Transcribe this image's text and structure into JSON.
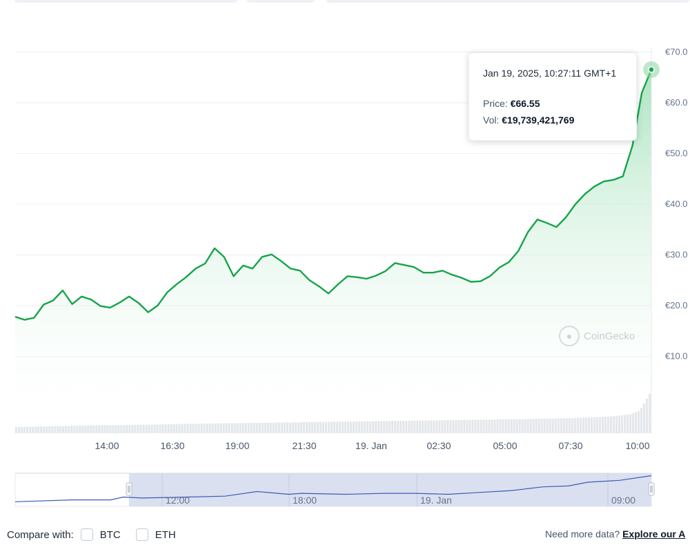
{
  "chart_data": {
    "type": "area",
    "series": [
      {
        "price_eur": [
          17.8,
          17.2,
          17.6,
          20.2,
          21.0,
          23.0,
          20.3,
          21.8,
          21.2,
          19.9,
          19.6,
          20.6,
          21.8,
          20.5,
          18.7,
          20.0,
          22.6,
          24.2,
          25.6,
          27.3,
          28.3,
          31.3,
          29.6,
          25.8,
          27.9,
          27.3,
          29.6,
          30.1,
          28.8,
          27.3,
          26.9,
          25.0,
          23.8,
          22.4,
          24.2,
          25.8,
          25.6,
          25.3,
          25.9,
          26.8,
          28.4,
          28.0,
          27.6,
          26.5,
          26.5,
          26.9,
          26.1,
          25.5,
          24.7,
          24.8,
          25.8,
          27.5,
          28.6,
          30.8,
          34.5,
          37.0,
          36.3,
          35.5,
          37.4,
          40.0,
          42.0,
          43.5,
          44.5,
          44.8,
          45.5,
          51.5,
          62.0,
          66.55
        ],
        "volume_eur_bn": [
          3.2,
          3.2,
          3.3,
          3.4,
          3.5,
          3.6,
          3.7,
          3.8,
          3.9,
          4.0,
          4.0,
          4.1,
          4.2,
          4.3,
          4.3,
          4.4,
          4.5,
          4.6,
          4.7,
          4.7,
          4.8,
          4.9,
          5.0,
          5.0,
          5.1,
          5.2,
          5.2,
          5.3,
          5.4,
          5.4,
          5.5,
          5.6,
          5.6,
          5.7,
          5.8,
          5.8,
          5.9,
          6.0,
          6.0,
          6.1,
          6.2,
          6.2,
          6.3,
          6.4,
          6.4,
          6.5,
          6.6,
          6.6,
          6.7,
          6.8,
          6.8,
          6.9,
          7.0,
          7.0,
          7.1,
          7.2,
          7.3,
          7.4,
          7.5,
          7.6,
          7.8,
          8.0,
          8.2,
          8.5,
          8.9,
          9.5,
          11.5,
          19.74
        ]
      }
    ],
    "y_axis": {
      "ticks": [
        "€10.0",
        "€20.0",
        "€30.0",
        "€40.0",
        "€50.0",
        "€60.0",
        "€70.0"
      ],
      "min": 0,
      "max": 70
    },
    "x_axis": {
      "ticks": [
        "14:00",
        "16:30",
        "19:00",
        "21:30",
        "19. Jan",
        "02:30",
        "05:00",
        "07:30",
        "10:00"
      ]
    },
    "navigator_ticks": [
      "12:00",
      "18:00",
      "19. Jan",
      "09:00"
    ],
    "grid": true,
    "colors": {
      "line": "#16a34a",
      "area_top": "#bfe8cc",
      "volume": "#e3e6ea",
      "navigator_line": "#3b5bb5",
      "navigator_sel": "#d6ddee"
    }
  },
  "tooltip": {
    "date": "Jan 19, 2025, 10:27:11 GMT+1",
    "price_label": "Price:",
    "price_value": "€66.55",
    "vol_label": "Vol:",
    "vol_value": "€19,739,421,769"
  },
  "watermark": {
    "text": "CoinGecko",
    "icon": "coingecko-logo-icon"
  },
  "compare": {
    "label": "Compare with:",
    "options": [
      {
        "label": "BTC",
        "checked": false
      },
      {
        "label": "ETH",
        "checked": false
      }
    ]
  },
  "footer": {
    "need_more": "Need more data?",
    "explore_link": "Explore our A"
  }
}
